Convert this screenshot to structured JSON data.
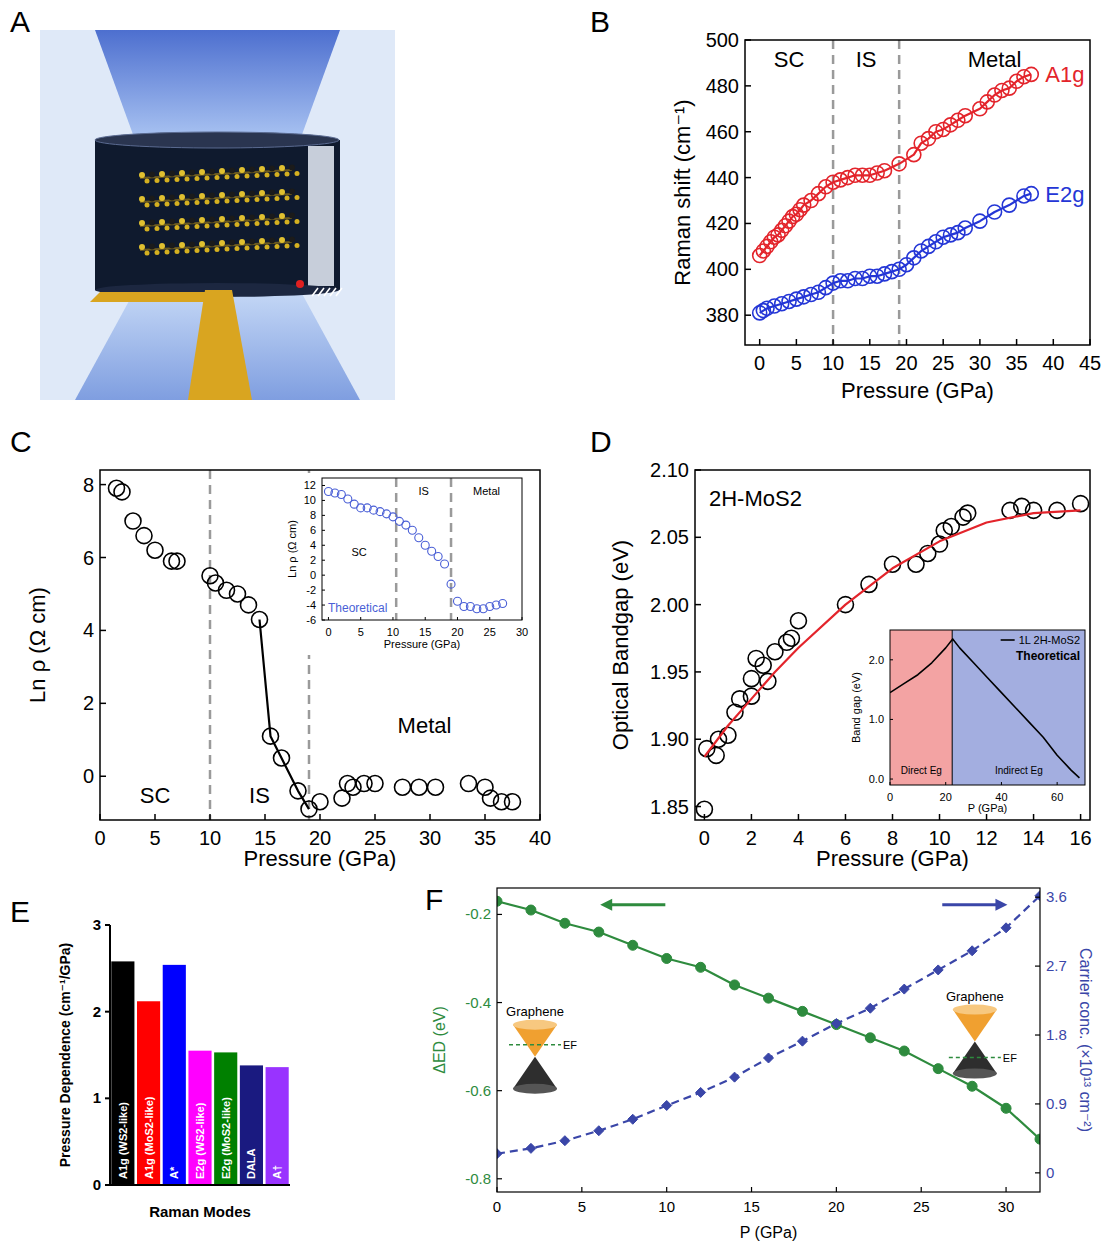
{
  "chart_data": [
    {
      "panel_label": "A",
      "type": "diagram"
    },
    {
      "panel_label": "B",
      "type": "scatter",
      "x_label": "Pressure (GPa)",
      "y_label": "Raman shift (cm⁻¹)",
      "xlim": [
        -2,
        45
      ],
      "xticks": [
        0,
        5,
        10,
        15,
        20,
        25,
        30,
        35,
        40,
        45
      ],
      "ylim": [
        367,
        500
      ],
      "yticks": [
        380,
        400,
        420,
        440,
        460,
        480,
        500
      ],
      "regions": [
        {
          "label": "SC",
          "from": -2,
          "to": 10
        },
        {
          "label": "IS",
          "from": 10,
          "to": 19
        },
        {
          "label": "Metal",
          "from": 19,
          "to": 45
        }
      ],
      "series": [
        {
          "name": "A1g",
          "color": "#e3242b",
          "marker": "open-circle",
          "line_style": "solid",
          "x": [
            0,
            0.5,
            1,
            1.5,
            2,
            2.5,
            3,
            3.5,
            4,
            4.5,
            5,
            5.5,
            6,
            7,
            8,
            9,
            10,
            11,
            12,
            13,
            14,
            15,
            16,
            17,
            19,
            21,
            22,
            23,
            24,
            25,
            26,
            27,
            28,
            30,
            31,
            32,
            33,
            34,
            35,
            36,
            37
          ],
          "values": [
            406,
            408,
            410,
            412,
            414,
            415,
            417,
            419,
            421,
            423,
            424,
            426,
            428,
            430,
            433,
            436,
            438,
            439,
            440,
            441,
            441,
            441,
            442,
            443,
            446,
            450,
            455,
            457,
            460,
            461,
            463,
            465,
            467,
            470,
            473,
            476,
            478,
            479,
            482,
            484,
            485
          ]
        },
        {
          "name": "E2g",
          "color": "#2436d6",
          "marker": "open-circle",
          "line_style": "solid",
          "x": [
            0,
            0.5,
            1,
            2,
            3,
            4,
            5,
            6,
            7,
            8,
            9,
            10,
            11,
            12,
            13,
            14,
            15,
            16,
            17,
            18,
            19,
            20,
            21,
            22,
            23,
            24,
            25,
            26,
            27,
            28,
            30,
            32,
            34,
            36,
            37
          ],
          "values": [
            381,
            382,
            383,
            384,
            385,
            386,
            387,
            388,
            389,
            390,
            392,
            394,
            395,
            395,
            396,
            396,
            397,
            397,
            398,
            399,
            400,
            402,
            405,
            408,
            410,
            412,
            414,
            415,
            416,
            418,
            421,
            425,
            428,
            432,
            433
          ]
        }
      ]
    },
    {
      "panel_label": "C",
      "type": "scatter",
      "x_label": "Pressure (GPa)",
      "y_label": "Ln ρ (Ω cm)",
      "xlim": [
        0,
        40
      ],
      "xticks": [
        0,
        5,
        10,
        15,
        20,
        25,
        30,
        35,
        40
      ],
      "ylim": [
        -1.2,
        8.4
      ],
      "yticks": [
        0,
        2,
        4,
        6,
        8
      ],
      "regions": [
        {
          "label": "SC",
          "from": 0,
          "to": 10
        },
        {
          "label": "IS",
          "from": 10,
          "to": 19
        },
        {
          "label": "Metal",
          "from": 19,
          "to": 40
        }
      ],
      "series": [
        {
          "color": "#000000",
          "marker": "open-circle",
          "x": [
            1.5,
            2,
            3,
            4,
            5,
            6.5,
            7,
            10,
            10.5,
            11.5,
            12.5,
            13.5,
            14.5,
            15.5,
            16.5,
            18,
            19,
            20,
            22,
            22.5,
            23,
            24,
            25,
            27.5,
            29,
            30.5,
            33.5,
            35,
            35.5,
            36.5,
            37.5
          ],
          "values": [
            7.9,
            7.8,
            7.0,
            6.6,
            6.2,
            5.9,
            5.9,
            5.5,
            5.3,
            5.1,
            5.0,
            4.7,
            4.3,
            1.1,
            0.5,
            -0.4,
            -0.9,
            -0.7,
            -0.6,
            -0.2,
            -0.3,
            -0.2,
            -0.2,
            -0.3,
            -0.3,
            -0.3,
            -0.2,
            -0.3,
            -0.6,
            -0.7,
            -0.7
          ]
        },
        {
          "type": "line",
          "color": "#000000",
          "line_style": "solid",
          "x": [
            14.5,
            15.5,
            16.5,
            18,
            19
          ],
          "values": [
            4.3,
            1.1,
            0.5,
            -0.4,
            -0.9
          ]
        }
      ],
      "inset": {
        "type": "scatter",
        "annotation": "Theoretical",
        "x_label": "Pressure (GPa)",
        "y_label": "Ln ρ (Ω cm)",
        "xlim": [
          -1,
          30
        ],
        "xticks": [
          0,
          5,
          10,
          15,
          20,
          25,
          30
        ],
        "ylim": [
          -6,
          13
        ],
        "yticks": [
          -6,
          -4,
          -2,
          0,
          2,
          4,
          6,
          8,
          10,
          12
        ],
        "regions": [
          {
            "label": "SC",
            "from": -1,
            "to": 10.5
          },
          {
            "label": "IS",
            "from": 10.5,
            "to": 19
          },
          {
            "label": "Metal",
            "from": 19,
            "to": 30
          }
        ],
        "series": [
          {
            "color": "#4a5fd6",
            "marker": "open-circle",
            "x": [
              0,
              1,
              2,
              3,
              4,
              5,
              6,
              7,
              8,
              9,
              10,
              11,
              12,
              13,
              14,
              15,
              16,
              17,
              18,
              19,
              20,
              21,
              22,
              23,
              24,
              25,
              26,
              27
            ],
            "values": [
              11.2,
              11.0,
              10.8,
              10.2,
              9.5,
              9.0,
              9.0,
              8.7,
              8.5,
              8.2,
              7.8,
              7.2,
              6.7,
              6.0,
              5.0,
              4.0,
              3.2,
              2.5,
              1.5,
              -1.2,
              -3.5,
              -4.2,
              -4.2,
              -4.5,
              -4.5,
              -4.2,
              -4.0,
              -3.8
            ]
          }
        ]
      }
    },
    {
      "panel_label": "D",
      "type": "scatter",
      "title": "2H-MoS2",
      "x_label": "Pressure (GPa)",
      "y_label": "Optical Bandgap (eV)",
      "xlim": [
        -0.4,
        16.4
      ],
      "xticks": [
        0,
        2,
        4,
        6,
        8,
        10,
        12,
        14,
        16
      ],
      "ylim": [
        1.84,
        2.1
      ],
      "yticks": [
        1.85,
        {
          "value": 1.9,
          "label": "1.90"
        },
        1.95,
        {
          "value": 2,
          "label": "2.00"
        },
        2.05,
        {
          "value": 2.1,
          "label": "2.10"
        }
      ],
      "series": [
        {
          "color": "#000000",
          "marker": "open-circle",
          "x": [
            0,
            0.1,
            0.5,
            0.6,
            1,
            1.3,
            1.5,
            2,
            2,
            2.2,
            2.5,
            2.7,
            3,
            3.5,
            3.7,
            4,
            6,
            7,
            8,
            9,
            9.5,
            10,
            10.2,
            10.5,
            11,
            11.2,
            13,
            13.5,
            14,
            15,
            16
          ],
          "values": [
            1.848,
            1.893,
            1.888,
            1.9,
            1.903,
            1.92,
            1.93,
            1.932,
            1.945,
            1.96,
            1.955,
            1.943,
            1.965,
            1.972,
            1.975,
            1.988,
            2.0,
            2.015,
            2.03,
            2.03,
            2.038,
            2.045,
            2.055,
            2.058,
            2.065,
            2.068,
            2.07,
            2.073,
            2.07,
            2.07,
            2.075
          ]
        },
        {
          "type": "line",
          "color": "#e3242b",
          "line_style": "solid",
          "x": [
            0,
            1,
            2,
            3,
            4,
            6,
            8,
            10,
            12,
            14,
            16
          ],
          "values": [
            1.887,
            1.91,
            1.93,
            1.95,
            1.968,
            2.0,
            2.027,
            2.047,
            2.061,
            2.068,
            2.07
          ]
        }
      ],
      "inset": {
        "type": "line",
        "annotation": "Theoretical",
        "x_label": "P (GPa)",
        "y_label": "Band gap (eV)",
        "legend": "top-right",
        "xlim": [
          0,
          70
        ],
        "xticks": [
          0,
          20,
          40,
          60
        ],
        "ylim": [
          -0.1,
          2.5
        ],
        "yticks": [
          {
            "value": 0,
            "label": "0.0"
          },
          {
            "value": 1,
            "label": "1.0"
          },
          {
            "value": 2,
            "label": "2.0"
          }
        ],
        "regions": [
          {
            "label": "Direct Eg",
            "from": 0,
            "to": 22.5,
            "color": "#f3a3a3"
          },
          {
            "label": "Indirect Eg",
            "from": 22.5,
            "to": 70,
            "color": "#a3aee0"
          }
        ],
        "series": [
          {
            "name": "1L 2H-MoS2",
            "color": "#000000",
            "line_style": "solid",
            "x": [
              0,
              5,
              10,
              15,
              20,
              22.5,
              25,
              30,
              35,
              40,
              45,
              50,
              55,
              60,
              65,
              68
            ],
            "values": [
              1.45,
              1.6,
              1.75,
              1.95,
              2.2,
              2.35,
              2.2,
              1.95,
              1.7,
              1.45,
              1.2,
              0.95,
              0.7,
              0.4,
              0.15,
              0.02
            ]
          }
        ]
      }
    },
    {
      "panel_label": "E",
      "type": "bar",
      "x_label": "Raman Modes",
      "y_label": "Pressure Dependence (cm⁻¹/GPa)",
      "tick_labels": "y",
      "categories": [
        "A1g (WS2-like)",
        "A1g (MoS2-like)",
        "A*",
        "E2g (WS2-like)",
        "E2g (MoS2-like)",
        "DALA",
        "A†"
      ],
      "values": [
        2.58,
        2.12,
        2.54,
        1.55,
        1.53,
        1.38,
        1.36
      ],
      "colors": [
        "#000000",
        "#ff0000",
        "#0000ff",
        "#ff00ff",
        "#008000",
        "#1a1a80",
        "#9933ff"
      ],
      "ylim": [
        0,
        3
      ],
      "yticks": [
        0,
        1,
        2,
        3
      ]
    },
    {
      "panel_label": "F",
      "type": "line",
      "x_label": "P (GPa)",
      "y_label": "ΔED (eV)",
      "y2_label": "Carrier conc. (×10¹³ cm⁻²)",
      "x": [
        0,
        2,
        4,
        6,
        8,
        10,
        12,
        14,
        16,
        18,
        20,
        22,
        24,
        26,
        28,
        30,
        32
      ],
      "xlim": [
        0,
        32
      ],
      "xticks": [
        0,
        5,
        10,
        15,
        20,
        25,
        30
      ],
      "ylim": [
        -0.83,
        -0.14
      ],
      "yticks": [
        -0.2,
        -0.4,
        -0.6,
        -0.8
      ],
      "y2lim": [
        -0.25,
        3.72
      ],
      "y2ticks": [
        0,
        0.9,
        1.8,
        2.7,
        3.6
      ],
      "annotations": [
        "Graphene",
        "EF",
        "Graphene",
        "EF"
      ],
      "series": [
        {
          "color": "#2e8b3e",
          "marker": "circle",
          "line_style": "solid",
          "values": [
            -0.17,
            -0.19,
            -0.22,
            -0.24,
            -0.27,
            -0.3,
            -0.32,
            -0.36,
            -0.39,
            -0.42,
            -0.45,
            -0.48,
            -0.51,
            -0.55,
            -0.59,
            -0.64,
            -0.71
          ]
        },
        {
          "axis": "y2",
          "color": "#3a46a8",
          "marker": "diamond",
          "line_style": "dashed",
          "values": [
            0.25,
            0.32,
            0.42,
            0.55,
            0.7,
            0.88,
            1.05,
            1.25,
            1.5,
            1.72,
            1.95,
            2.15,
            2.4,
            2.65,
            2.9,
            3.2,
            3.62
          ]
        }
      ]
    }
  ]
}
